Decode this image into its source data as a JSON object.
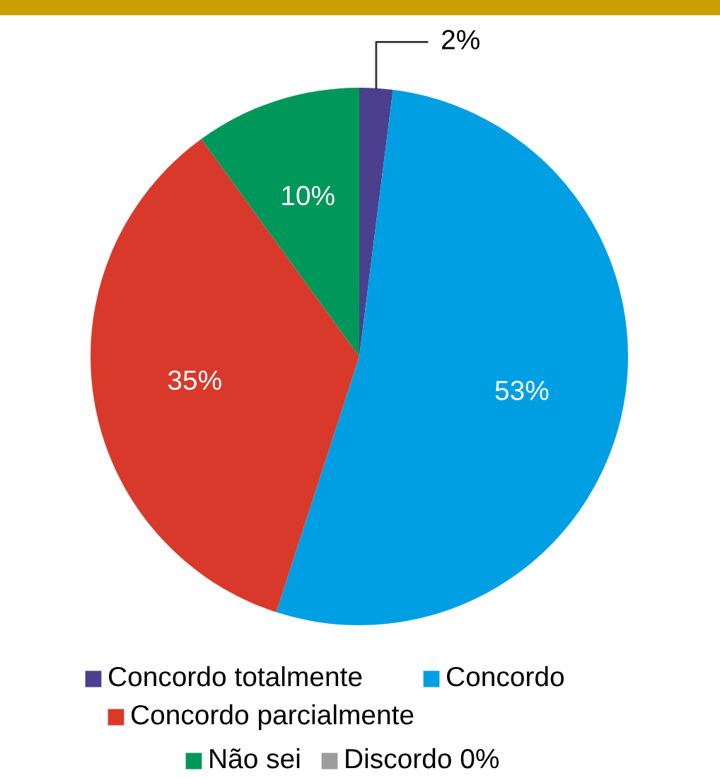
{
  "chart_data": {
    "type": "pie",
    "categories": [
      "Concordo totalmente",
      "Concordo",
      "Concordo parcialmente",
      "Não sei",
      "Discordo"
    ],
    "values": [
      2,
      53,
      35,
      10,
      0
    ],
    "colors": [
      "#4b3f8e",
      "#009fe3",
      "#d9392b",
      "#00975a",
      "#9d9d9d"
    ],
    "value_labels": [
      "2%",
      "53%",
      "35%",
      "10%",
      "0%"
    ],
    "legend": "bottom"
  }
}
